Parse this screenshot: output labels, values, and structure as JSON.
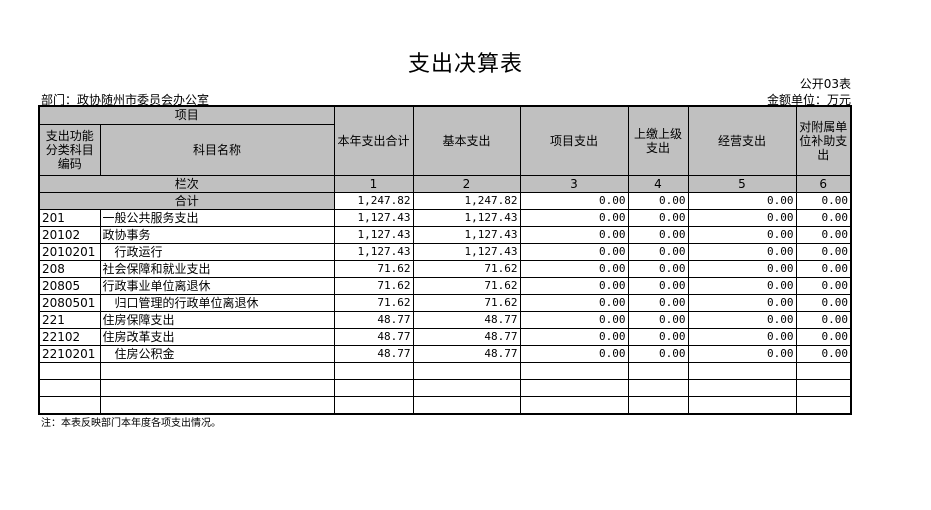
{
  "title": "支出决算表",
  "form_no": "公开03表",
  "department": "部门：政协随州市委员会办公室",
  "unit": "金额单位：万元",
  "headers": {
    "project": "项目",
    "code": "支出功能分类科目编码",
    "name": "科目名称",
    "c1": "本年支出合计",
    "c2": "基本支出",
    "c3": "项目支出",
    "c4": "上缴上级支出",
    "c5": "经营支出",
    "c6": "对附属单位补助支出"
  },
  "column_row": {
    "label": "栏次",
    "n": [
      "1",
      "2",
      "3",
      "4",
      "5",
      "6"
    ]
  },
  "total_row": {
    "label": "合计",
    "values": [
      "1,247.82",
      "1,247.82",
      "0.00",
      "0.00",
      "0.00",
      "0.00"
    ]
  },
  "rows": [
    {
      "code": "201",
      "name": "一般公共服务支出",
      "indent": false,
      "values": [
        "1,127.43",
        "1,127.43",
        "0.00",
        "0.00",
        "0.00",
        "0.00"
      ]
    },
    {
      "code": "20102",
      "name": "政协事务",
      "indent": false,
      "values": [
        "1,127.43",
        "1,127.43",
        "0.00",
        "0.00",
        "0.00",
        "0.00"
      ]
    },
    {
      "code": "2010201",
      "name": "行政运行",
      "indent": true,
      "values": [
        "1,127.43",
        "1,127.43",
        "0.00",
        "0.00",
        "0.00",
        "0.00"
      ]
    },
    {
      "code": "208",
      "name": "社会保障和就业支出",
      "indent": false,
      "values": [
        "71.62",
        "71.62",
        "0.00",
        "0.00",
        "0.00",
        "0.00"
      ]
    },
    {
      "code": "20805",
      "name": "行政事业单位离退休",
      "indent": false,
      "values": [
        "71.62",
        "71.62",
        "0.00",
        "0.00",
        "0.00",
        "0.00"
      ]
    },
    {
      "code": "2080501",
      "name": "归口管理的行政单位离退休",
      "indent": true,
      "values": [
        "71.62",
        "71.62",
        "0.00",
        "0.00",
        "0.00",
        "0.00"
      ]
    },
    {
      "code": "221",
      "name": "住房保障支出",
      "indent": false,
      "values": [
        "48.77",
        "48.77",
        "0.00",
        "0.00",
        "0.00",
        "0.00"
      ]
    },
    {
      "code": "22102",
      "name": "住房改革支出",
      "indent": false,
      "values": [
        "48.77",
        "48.77",
        "0.00",
        "0.00",
        "0.00",
        "0.00"
      ]
    },
    {
      "code": "2210201",
      "name": "住房公积金",
      "indent": true,
      "values": [
        "48.77",
        "48.77",
        "0.00",
        "0.00",
        "0.00",
        "0.00"
      ]
    }
  ],
  "empty_rows": 3,
  "note": "注：本表反映部门本年度各项支出情况。"
}
